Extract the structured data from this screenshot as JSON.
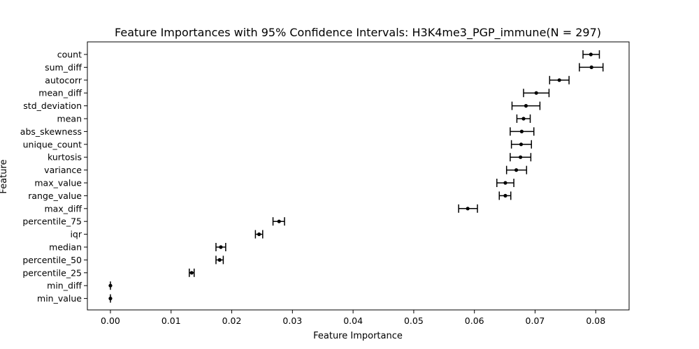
{
  "chart_data": {
    "type": "scatter",
    "title": "Feature Importances with 95% Confidence Intervals: H3K4me3_PGP_immune(N = 297)",
    "xlabel": "Feature Importance",
    "ylabel": "Feature",
    "xlim": [
      -0.0038,
      0.0855
    ],
    "x_ticks": [
      0.0,
      0.01,
      0.02,
      0.03,
      0.04,
      0.05,
      0.06,
      0.07,
      0.08
    ],
    "x_tick_labels": [
      "0.00",
      "0.01",
      "0.02",
      "0.03",
      "0.04",
      "0.05",
      "0.06",
      "0.07",
      "0.08"
    ],
    "grid": false,
    "features": [
      "count",
      "sum_diff",
      "autocorr",
      "mean_diff",
      "std_deviation",
      "mean",
      "abs_skewness",
      "unique_count",
      "kurtosis",
      "variance",
      "max_value",
      "range_value",
      "max_diff",
      "percentile_75",
      "iqr",
      "median",
      "percentile_50",
      "percentile_25",
      "min_diff",
      "min_value"
    ],
    "importance": [
      0.0792,
      0.0793,
      0.074,
      0.0702,
      0.0685,
      0.0681,
      0.0678,
      0.0677,
      0.0676,
      0.0669,
      0.0651,
      0.0651,
      0.0589,
      0.0278,
      0.0245,
      0.0182,
      0.018,
      0.0134,
      0.0,
      0.0
    ],
    "ci_lower": [
      0.0779,
      0.0773,
      0.0724,
      0.0681,
      0.0662,
      0.067,
      0.0659,
      0.0661,
      0.0659,
      0.0653,
      0.0637,
      0.0641,
      0.0574,
      0.0268,
      0.0239,
      0.0174,
      0.0174,
      0.013,
      0.0,
      0.0
    ],
    "ci_upper": [
      0.0806,
      0.0812,
      0.0756,
      0.0723,
      0.0708,
      0.0692,
      0.0698,
      0.0694,
      0.0693,
      0.0686,
      0.0665,
      0.066,
      0.0605,
      0.0287,
      0.0251,
      0.019,
      0.0186,
      0.0138,
      0.0,
      0.0
    ],
    "marker_color": "#000000"
  }
}
